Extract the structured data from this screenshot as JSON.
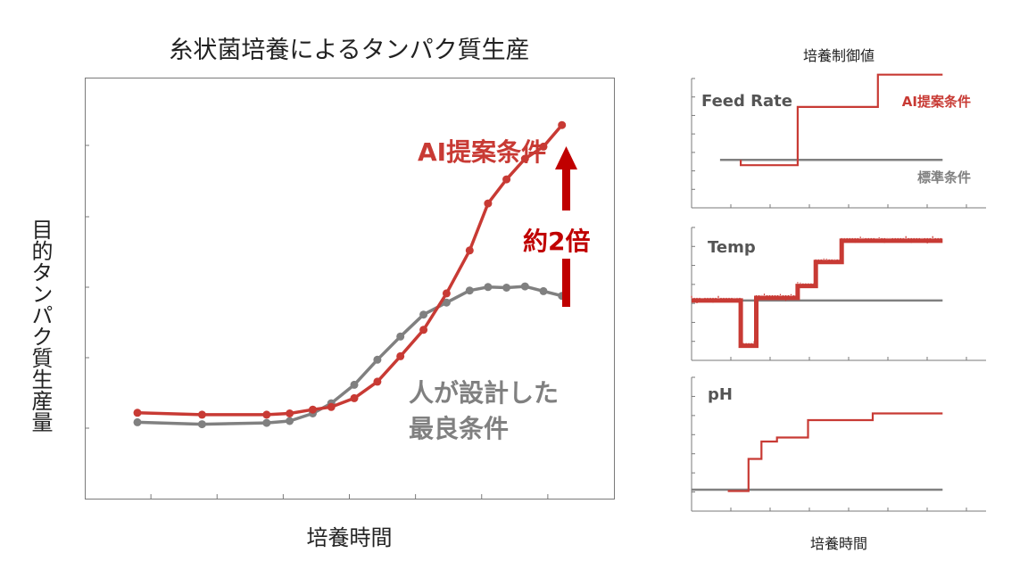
{
  "main": {
    "title": "糸状菌培養によるタンパク質生産",
    "xlabel": "培養時間",
    "ylabel": "目的タンパク質生産量",
    "colors": {
      "ai": "#c83a34",
      "standard": "#808080",
      "arrow": "#c00000"
    },
    "labels": {
      "ai": "AI提案条件",
      "human_line1": "人が設計した",
      "human_line2": "最良条件",
      "gain": "約2倍"
    }
  },
  "right": {
    "title": "培養制御値",
    "xlabel": "培養時間",
    "ai_label": "AI提案条件",
    "standard_label": "標準条件",
    "panels": [
      {
        "title": "Feed Rate"
      },
      {
        "title": "Temp"
      },
      {
        "title": "pH"
      }
    ]
  },
  "chart_data": [
    {
      "type": "line",
      "title": "糸状菌培養によるタンパク質生産",
      "xlabel": "培養時間",
      "ylabel": "目的タンパク質生産量",
      "xlim": [
        0,
        100
      ],
      "ylim": [
        0,
        100
      ],
      "grid": false,
      "series": [
        {
          "name": "AI提案条件",
          "x": [
            6,
            20,
            34,
            39,
            44,
            48,
            53,
            58,
            63,
            68,
            73,
            78,
            82,
            86,
            90,
            94,
            98
          ],
          "y": [
            15.8,
            15.2,
            15.2,
            15.6,
            16.8,
            17.6,
            20.4,
            25.6,
            33.6,
            41.9,
            53.4,
            66.9,
            81.7,
            89.3,
            95.8,
            99.6,
            106.4
          ]
        },
        {
          "name": "人が設計した最良条件",
          "x": [
            6,
            20,
            34,
            39,
            44,
            48,
            53,
            58,
            63,
            68,
            73,
            78,
            82,
            86,
            90,
            94,
            98
          ],
          "y": [
            12.8,
            12.2,
            12.6,
            13.2,
            15.6,
            18.8,
            24.6,
            32.5,
            39.8,
            46.7,
            50.5,
            54.3,
            55.4,
            55.2,
            55.6,
            54.1,
            52.6
          ]
        }
      ]
    },
    {
      "type": "line",
      "title": "Feed Rate",
      "xlim": [
        0,
        100
      ],
      "ylim": [
        0,
        100
      ],
      "series": [
        {
          "name": "AI提案条件",
          "x": [
            19,
            19,
            41,
            41,
            72,
            72,
            97
          ],
          "y": [
            37,
            33,
            33,
            78,
            78,
            103,
            103
          ]
        },
        {
          "name": "標準条件",
          "x": [
            11,
            97
          ],
          "y": [
            37,
            37
          ]
        }
      ]
    },
    {
      "type": "line",
      "title": "Temp",
      "xlim": [
        0,
        100
      ],
      "ylim": [
        0,
        100
      ],
      "series": [
        {
          "name": "AI提案条件",
          "x": [
            0,
            19,
            19,
            25,
            25,
            41,
            41,
            48,
            48,
            58,
            58,
            97
          ],
          "y": [
            45,
            45,
            11,
            11,
            47,
            47,
            56,
            56,
            74,
            74,
            90,
            90
          ]
        },
        {
          "name": "標準条件",
          "x": [
            0,
            97
          ],
          "y": [
            45,
            45
          ]
        }
      ]
    },
    {
      "type": "line",
      "title": "pH",
      "xlim": [
        0,
        100
      ],
      "ylim": [
        0,
        100
      ],
      "series": [
        {
          "name": "AI提案条件",
          "x": [
            14,
            22,
            22,
            27,
            27,
            33,
            33,
            45,
            45,
            70,
            70,
            97
          ],
          "y": [
            15,
            15,
            39,
            39,
            52,
            52,
            55,
            55,
            68,
            68,
            73,
            73
          ]
        },
        {
          "name": "標準条件",
          "x": [
            0,
            97
          ],
          "y": [
            16,
            16
          ]
        }
      ]
    }
  ]
}
